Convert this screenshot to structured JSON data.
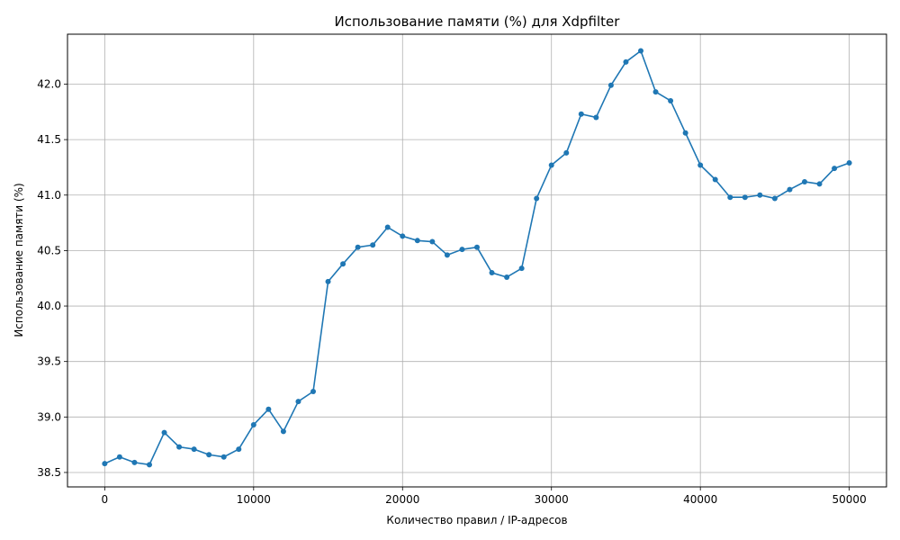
{
  "chart_data": {
    "type": "line",
    "title": "Использование памяти (%) для Xdpfilter",
    "xlabel": "Количество правил / IP-адресов",
    "ylabel": "Использование памяти (%)",
    "xlim": [
      -2500,
      52500
    ],
    "ylim": [
      38.37,
      42.45
    ],
    "xticks": [
      0,
      10000,
      20000,
      30000,
      40000,
      50000
    ],
    "xtick_labels": [
      "0",
      "10000",
      "20000",
      "30000",
      "40000",
      "50000"
    ],
    "yticks": [
      38.5,
      39.0,
      39.5,
      40.0,
      40.5,
      41.0,
      41.5,
      42.0
    ],
    "ytick_labels": [
      "38.5",
      "39.0",
      "39.5",
      "40.0",
      "40.5",
      "41.0",
      "41.5",
      "42.0"
    ],
    "grid": true,
    "line_color": "#1f77b4",
    "series": [
      {
        "x": [
          0,
          1000,
          2000,
          3000,
          4000,
          5000,
          6000,
          7000,
          8000,
          9000,
          10000,
          11000,
          12000,
          13000,
          14000,
          15000,
          16000,
          17000,
          18000,
          19000,
          20000,
          21000,
          22000,
          23000,
          24000,
          25000,
          26000,
          27000,
          28000,
          29000,
          30000,
          31000,
          32000,
          33000,
          34000,
          35000,
          36000,
          37000,
          38000,
          39000,
          40000,
          41000,
          42000,
          43000,
          44000,
          45000,
          46000,
          47000,
          48000,
          49000,
          50000
        ],
        "values": [
          38.58,
          38.64,
          38.59,
          38.57,
          38.86,
          38.73,
          38.71,
          38.66,
          38.64,
          38.71,
          38.93,
          39.07,
          38.87,
          39.14,
          39.23,
          40.22,
          40.38,
          40.53,
          40.55,
          40.71,
          40.63,
          40.59,
          40.58,
          40.46,
          40.51,
          40.53,
          40.3,
          40.26,
          40.34,
          40.97,
          41.27,
          41.38,
          41.73,
          41.7,
          41.99,
          42.2,
          42.3,
          41.93,
          41.85,
          41.56,
          41.27,
          41.14,
          40.98,
          40.98,
          41.0,
          40.97,
          41.05,
          41.12,
          41.1,
          41.24,
          41.29
        ]
      }
    ]
  }
}
